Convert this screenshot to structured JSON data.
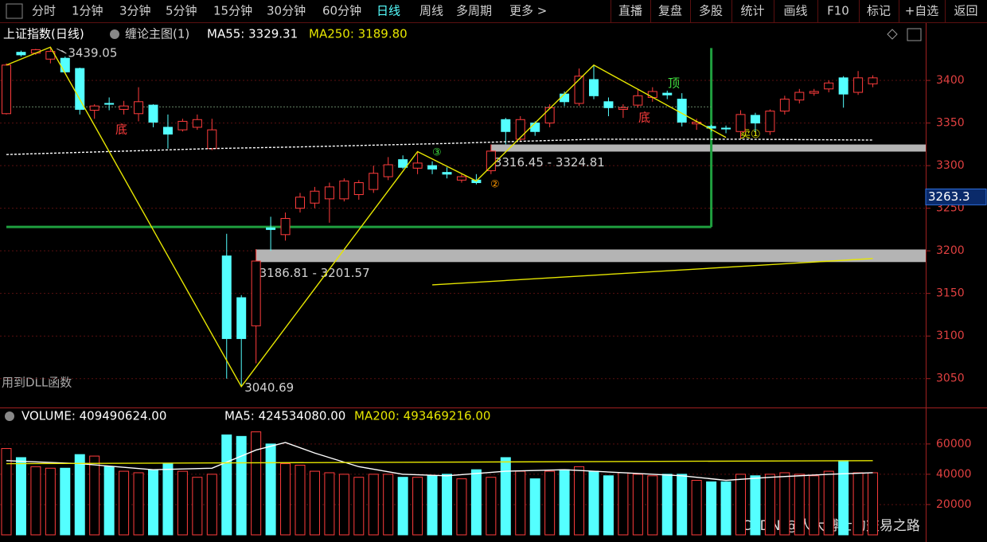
{
  "menu": {
    "left": [
      "分时",
      "1分钟",
      "3分钟",
      "5分钟",
      "15分钟",
      "30分钟",
      "60分钟",
      "日线",
      "周线",
      "多周期",
      "更多 >"
    ],
    "active": 7,
    "right": [
      "直播",
      "复盘",
      "多股",
      "统计",
      "画线",
      "F10",
      "标记",
      "+自选",
      "返回"
    ]
  },
  "header": {
    "symbol": "上证指数(日线)",
    "indicator": "缠论主图(1)",
    "ma55": "MA55: 3329.31",
    "ma250": "MA250: 3189.80"
  },
  "volume_header": {
    "volume": "VOLUME: 409490624.00",
    "ma5": "MA5: 424534080.00",
    "ma200": "MA200: 493469216.00"
  },
  "chart_data": {
    "type": "candlestick",
    "open": [
      3361,
      3433,
      3432,
      3425,
      3426,
      3414,
      3365,
      3373,
      3366,
      3361,
      3371,
      3345,
      3342,
      3345,
      3320,
      3194,
      3145,
      3112,
      3227,
      3219,
      3250,
      3256,
      3261,
      3261,
      3266,
      3272,
      3287,
      3307,
      3297,
      3300,
      3292,
      3283,
      3283,
      3294,
      3354,
      3331,
      3350,
      3350,
      3384,
      3373,
      3401,
      3375,
      3366,
      3371,
      3380,
      3385,
      3378,
      3349,
      3346,
      3344,
      3340,
      3359,
      3340,
      3364,
      3377,
      3385,
      3390,
      3403,
      3386,
      3396
    ],
    "high": [
      3420,
      3435,
      3437,
      3439.05,
      3428,
      3415,
      3372,
      3380,
      3376,
      3392,
      3372,
      3360,
      3355,
      3360,
      3355,
      3220,
      3148,
      3202,
      3240,
      3245,
      3268,
      3275,
      3280,
      3285,
      3283,
      3300,
      3310,
      3312,
      3316.45,
      3305,
      3298,
      3290,
      3290,
      3324.81,
      3356,
      3358,
      3352,
      3372,
      3387,
      3414,
      3418,
      3380,
      3372,
      3390,
      3392,
      3388,
      3385,
      3355,
      3348,
      3347,
      3365,
      3362,
      3366,
      3382,
      3390,
      3390,
      3400,
      3405,
      3411,
      3406
    ],
    "low": [
      3360,
      3428,
      3430,
      3420,
      3408,
      3360,
      3355,
      3365,
      3360,
      3352,
      3345,
      3320,
      3340,
      3342,
      3318,
      3050,
      3040.69,
      3068,
      3200,
      3212,
      3245,
      3250,
      3233,
      3258,
      3260,
      3268,
      3283,
      3296,
      3290,
      3290,
      3285,
      3280,
      3278,
      3290,
      3325,
      3328,
      3335,
      3345,
      3370,
      3370,
      3378,
      3358,
      3356,
      3368,
      3375,
      3378,
      3346,
      3342,
      3340,
      3338,
      3332,
      3340,
      3336,
      3360,
      3373,
      3382,
      3386,
      3368,
      3383,
      3392
    ],
    "close": [
      3418,
      3430,
      3436,
      3434,
      3410,
      3366,
      3370,
      3372,
      3370,
      3375,
      3351,
      3337,
      3352,
      3354,
      3342,
      3097,
      3097,
      3188,
      3225,
      3238,
      3263,
      3270,
      3275,
      3282,
      3280,
      3291,
      3301,
      3298,
      3303,
      3296,
      3290,
      3287,
      3280,
      3317,
      3340,
      3354,
      3340,
      3368,
      3375,
      3405,
      3382,
      3368,
      3368,
      3382,
      3387,
      3383,
      3351,
      3351,
      3344,
      3343,
      3360,
      3350,
      3364,
      3378,
      3386,
      3387,
      3397,
      3384,
      3403,
      3403
    ],
    "volume": [
      57000,
      51000,
      45000,
      44000,
      44000,
      53000,
      52000,
      45000,
      42000,
      41000,
      43000,
      47000,
      42000,
      38000,
      40000,
      66000,
      65000,
      68000,
      60000,
      47000,
      46000,
      42000,
      41000,
      40000,
      38000,
      40000,
      40000,
      38000,
      38000,
      39000,
      40000,
      37000,
      43000,
      38000,
      51000,
      42000,
      37000,
      42000,
      43000,
      45000,
      42000,
      39000,
      41000,
      40000,
      39000,
      40000,
      40000,
      36000,
      35000,
      35000,
      40000,
      39000,
      40000,
      41000,
      40000,
      39000,
      42000,
      49000,
      41000,
      41000
    ],
    "up_color": "#ff3c3c",
    "down_color": "#54ffff",
    "ylim": [
      3018,
      3443
    ],
    "yticks": [
      3050,
      3100,
      3150,
      3200,
      3250,
      3300,
      3350,
      3400
    ],
    "vol_ylim": [
      0,
      72000
    ],
    "vol_yticks": [
      20000,
      40000,
      60000
    ],
    "last_price": 3263.3,
    "price_overlays": [
      {
        "color": "#ffffff",
        "dash": true,
        "x": [
          0,
          10,
          14,
          20,
          30,
          40,
          50,
          59
        ],
        "values": [
          3313,
          3318,
          3320,
          3322,
          3326,
          3331,
          3331,
          3330
        ]
      },
      {
        "color": "#e6e600",
        "dash": false,
        "x": [
          0,
          3,
          16,
          28,
          32,
          40,
          49
        ],
        "values": [
          3418,
          3439.05,
          3040.69,
          3316.45,
          3282,
          3418,
          3333
        ]
      },
      {
        "color": "#e6e600",
        "dash": false,
        "x": [
          29,
          59
        ],
        "values": [
          3160,
          3191
        ]
      }
    ],
    "volume_overlays": [
      {
        "color": "#ffffff",
        "x": [
          0,
          5,
          10,
          14,
          17,
          19,
          21,
          24,
          27,
          30,
          34,
          38,
          42,
          46,
          49,
          52,
          56,
          59
        ],
        "values": [
          49000,
          47000,
          43000,
          44000,
          56000,
          61000,
          54000,
          45000,
          40000,
          39000,
          42000,
          43000,
          41000,
          39000,
          36000,
          38000,
          40000,
          41000
        ]
      },
      {
        "color": "#e6e600",
        "x": [
          0,
          59
        ],
        "values": [
          47000,
          49000
        ]
      }
    ],
    "zones": [
      {
        "from": 33,
        "low": 3316.45,
        "high": 3324.81,
        "label": "3316.45 - 3324.81"
      },
      {
        "from": 17,
        "low": 3186.81,
        "high": 3201.57,
        "label": "3186.81 - 3201.57"
      }
    ],
    "green_box": {
      "to": 48,
      "level": 3228,
      "top": 3438
    },
    "dotted_level": {
      "to": 48,
      "value": 3369
    }
  },
  "annotations": [
    "底",
    "底",
    "顶",
    "③",
    "②",
    "卖①"
  ],
  "footer": {
    "dll": "用到DLL函数",
    "watermark": "CSDN @人大博士的交易之路"
  }
}
